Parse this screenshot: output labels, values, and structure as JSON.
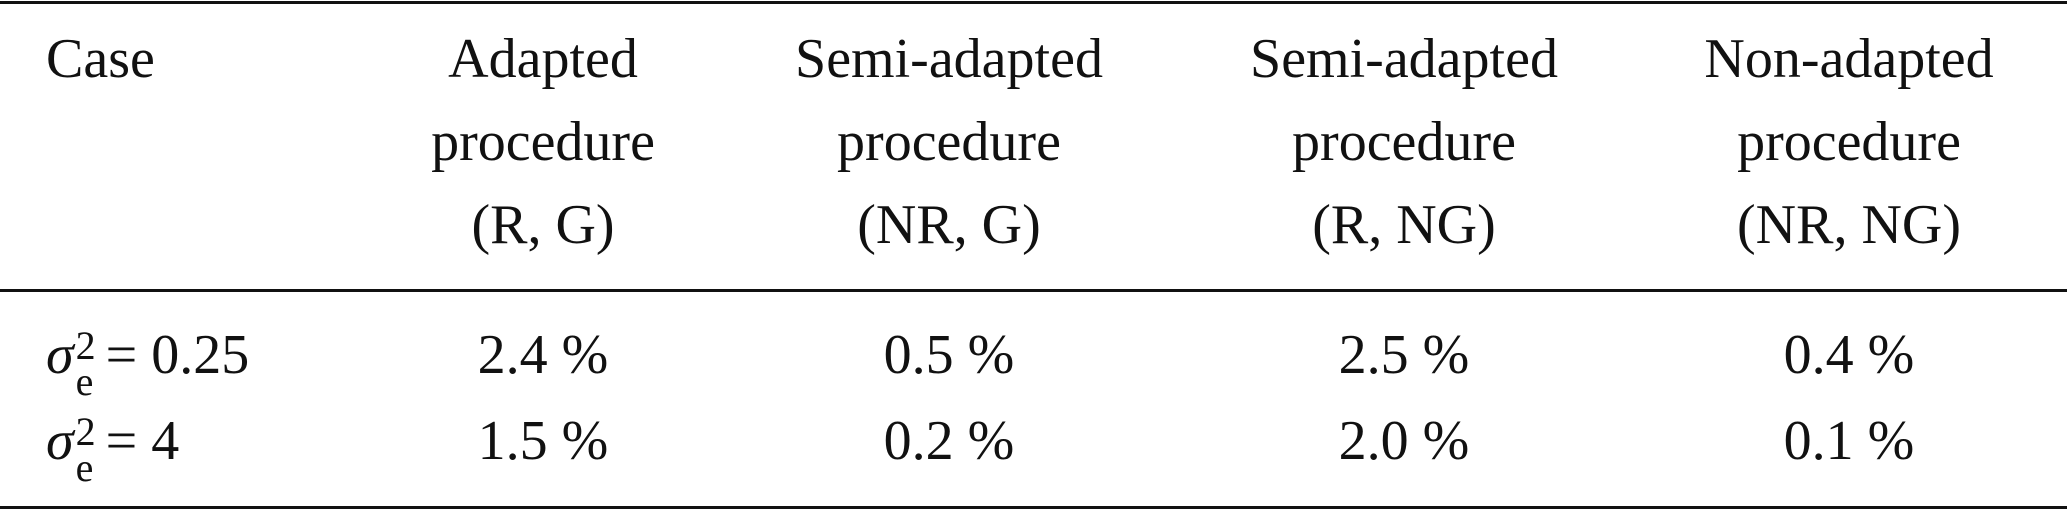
{
  "table": {
    "header": [
      [
        "Case"
      ],
      [
        "Adapted",
        "procedure",
        "(R, G)"
      ],
      [
        "Semi-adapted",
        "procedure",
        "(NR, G)"
      ],
      [
        "Semi-adapted",
        "procedure",
        "(R, NG)"
      ],
      [
        "Non-adapted",
        "procedure",
        "(NR, NG)"
      ]
    ],
    "rows": [
      {
        "label": {
          "symbol": "σ",
          "sup": "2",
          "sub": "e",
          "rest": "= 0.25"
        },
        "cells": [
          "2.4 %",
          "0.5 %",
          "2.5 %",
          "0.4 %"
        ]
      },
      {
        "label": {
          "symbol": "σ",
          "sup": "2",
          "sub": "e",
          "rest": "= 4"
        },
        "cells": [
          "1.5 %",
          "0.2 %",
          "2.0 %",
          "0.1 %"
        ]
      }
    ]
  }
}
